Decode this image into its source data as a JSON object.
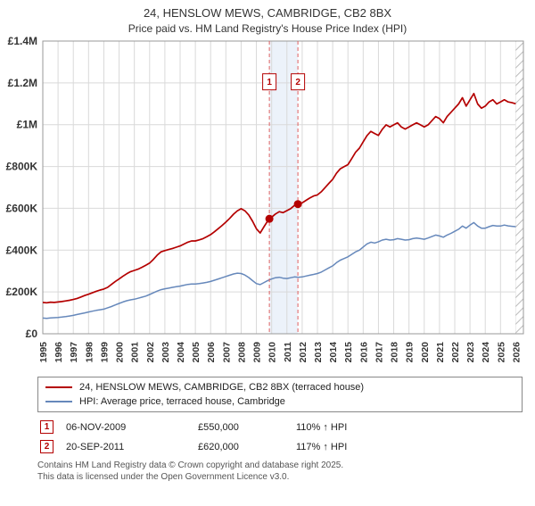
{
  "chart_data": {
    "type": "line",
    "title": "24, HENSLOW MEWS, CAMBRIDGE, CB2 8BX",
    "subtitle": "Price paid vs. HM Land Registry's House Price Index (HPI)",
    "x_domain": [
      1995,
      2026.5
    ],
    "x_start": 1995,
    "x_step": 0.25,
    "x_ticks": [
      1995,
      1996,
      1997,
      1998,
      1999,
      2000,
      2001,
      2002,
      2003,
      2004,
      2005,
      2006,
      2007,
      2008,
      2009,
      2010,
      2011,
      2012,
      2013,
      2014,
      2015,
      2016,
      2017,
      2018,
      2019,
      2020,
      2021,
      2022,
      2023,
      2024,
      2025,
      2026
    ],
    "ylim": [
      0,
      1400
    ],
    "y_unit": "GBP thousands",
    "y_ticks": [
      {
        "v": 0,
        "l": "£0"
      },
      {
        "v": 200,
        "l": "£200K"
      },
      {
        "v": 400,
        "l": "£400K"
      },
      {
        "v": 600,
        "l": "£600K"
      },
      {
        "v": 800,
        "l": "£800K"
      },
      {
        "v": 1000,
        "l": "£1M"
      },
      {
        "v": 1200,
        "l": "£1.2M"
      },
      {
        "v": 1400,
        "l": "£1.4M"
      }
    ],
    "grid": true,
    "legend_position": "bottom",
    "colors": {
      "red": "#b40000",
      "blue": "#6688bb",
      "grid": "#d9d9d9",
      "marker_line": "#e06060",
      "band": "rgba(130,165,220,0.15)",
      "plot_border": "#999999",
      "hatch": "#bbbbbb"
    },
    "shaded_span": [
      2009.85,
      2011.72
    ],
    "hatch_span": [
      2026.0,
      2026.5
    ],
    "marker_label_v": 1205,
    "markers": [
      {
        "n": "1",
        "x": 2009.85,
        "v": 550
      },
      {
        "n": "2",
        "x": 2011.72,
        "v": 620
      }
    ],
    "series": [
      {
        "name": "24, HENSLOW MEWS, CAMBRIDGE, CB2 8BX (terraced house)",
        "color": "#b40000",
        "width": 1.7,
        "values": [
          150,
          148,
          151,
          150,
          152,
          154,
          157,
          160,
          164,
          169,
          176,
          183,
          189,
          196,
          203,
          209,
          214,
          222,
          236,
          250,
          262,
          275,
          287,
          297,
          303,
          309,
          318,
          328,
          338,
          356,
          376,
          392,
          398,
          403,
          408,
          414,
          420,
          429,
          438,
          444,
          444,
          449,
          455,
          464,
          474,
          488,
          503,
          518,
          534,
          552,
          572,
          588,
          598,
          588,
          568,
          538,
          502,
          482,
          512,
          541,
          558,
          573,
          584,
          579,
          589,
          599,
          614,
          621,
          626,
          638,
          649,
          659,
          664,
          679,
          699,
          719,
          739,
          768,
          789,
          799,
          809,
          838,
          868,
          888,
          918,
          948,
          968,
          958,
          949,
          978,
          999,
          989,
          999,
          1009,
          989,
          979,
          989,
          999,
          1009,
          999,
          989,
          999,
          1019,
          1039,
          1029,
          1009,
          1039,
          1059,
          1079,
          1099,
          1129,
          1089,
          1119,
          1149,
          1099,
          1079,
          1089,
          1109,
          1119,
          1099,
          1109,
          1119,
          1109,
          1105,
          1100
        ]
      },
      {
        "name": "HPI: Average price, terraced house, Cambridge",
        "color": "#6688bb",
        "width": 1.5,
        "values": [
          75,
          74,
          76,
          77,
          78,
          80,
          82,
          85,
          88,
          92,
          96,
          100,
          104,
          108,
          112,
          115,
          118,
          124,
          130,
          138,
          145,
          152,
          158,
          162,
          165,
          170,
          175,
          180,
          188,
          196,
          204,
          211,
          215,
          218,
          222,
          225,
          228,
          232,
          236,
          238,
          238,
          240,
          243,
          246,
          250,
          256,
          262,
          268,
          274,
          280,
          286,
          290,
          288,
          281,
          269,
          254,
          240,
          235,
          245,
          255,
          262,
          268,
          270,
          266,
          264,
          268,
          272,
          270,
          272,
          276,
          280,
          284,
          288,
          295,
          305,
          315,
          325,
          340,
          352,
          360,
          368,
          380,
          392,
          400,
          415,
          430,
          438,
          434,
          440,
          448,
          452,
          448,
          450,
          455,
          452,
          448,
          450,
          455,
          458,
          455,
          452,
          458,
          465,
          472,
          468,
          462,
          472,
          480,
          490,
          500,
          515,
          505,
          520,
          532,
          515,
          505,
          505,
          512,
          518,
          515,
          515,
          520,
          516,
          514,
          512
        ]
      }
    ]
  },
  "legend": {
    "entries": [
      {
        "label": "24, HENSLOW MEWS, CAMBRIDGE, CB2 8BX (terraced house)",
        "color": "#b40000"
      },
      {
        "label": "HPI: Average price, terraced house, Cambridge",
        "color": "#6688bb"
      }
    ]
  },
  "transactions": [
    {
      "num": "1",
      "date": "06-NOV-2009",
      "price": "£550,000",
      "hpi": "110% ↑ HPI"
    },
    {
      "num": "2",
      "date": "20-SEP-2011",
      "price": "£620,000",
      "hpi": "117% ↑ HPI"
    }
  ],
  "footer": {
    "line1": "Contains HM Land Registry data © Crown copyright and database right 2025.",
    "line2": "This data is licensed under the Open Government Licence v3.0."
  }
}
